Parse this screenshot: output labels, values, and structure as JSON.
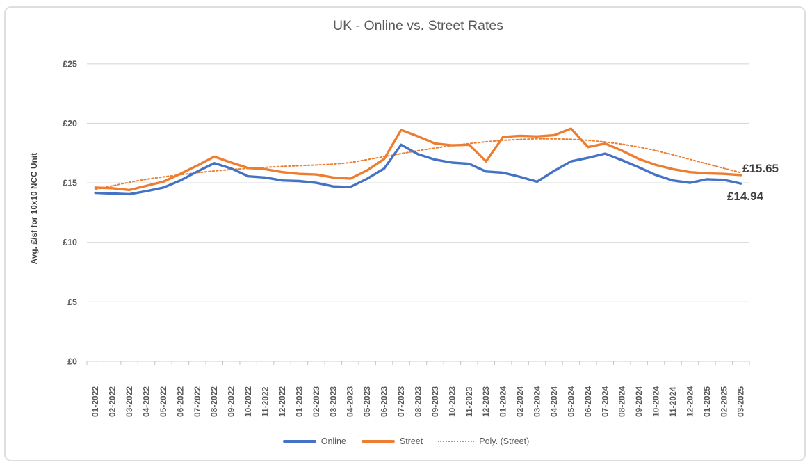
{
  "chart_data": {
    "type": "line",
    "title": "UK - Online vs. Street Rates",
    "xlabel": "",
    "ylabel": "Avg. £/sf for 10x10 NCC Unit",
    "ylim": [
      0,
      25
    ],
    "ytick_step": 5,
    "ytick_labels": [
      "£0",
      "£5",
      "£10",
      "£15",
      "£20",
      "£25"
    ],
    "grid": true,
    "legend_position": "bottom",
    "categories": [
      "01-2022",
      "02-2022",
      "03-2022",
      "04-2022",
      "05-2022",
      "06-2022",
      "07-2022",
      "08-2022",
      "09-2022",
      "10-2022",
      "11-2022",
      "12-2022",
      "01-2023",
      "02-2023",
      "03-2023",
      "04-2023",
      "05-2023",
      "06-2023",
      "07-2023",
      "08-2023",
      "09-2023",
      "10-2023",
      "11-2023",
      "12-2023",
      "01-2024",
      "02-2024",
      "03-2024",
      "04-2024",
      "05-2024",
      "06-2024",
      "07-2024",
      "08-2024",
      "09-2024",
      "10-2024",
      "11-2024",
      "12-2024",
      "01-2025",
      "02-2025",
      "03-2025"
    ],
    "series": [
      {
        "name": "Online",
        "type": "line",
        "style": "solid",
        "color": "#4472C4",
        "values": [
          14.15,
          14.1,
          14.05,
          14.3,
          14.6,
          15.2,
          15.95,
          16.65,
          16.2,
          15.55,
          15.45,
          15.2,
          15.15,
          15.0,
          14.7,
          14.65,
          15.35,
          16.2,
          18.2,
          17.4,
          16.95,
          16.7,
          16.6,
          15.95,
          15.85,
          15.5,
          15.1,
          16.0,
          16.8,
          17.1,
          17.45,
          16.9,
          16.3,
          15.65,
          15.2,
          15.0,
          15.3,
          15.25,
          14.94
        ]
      },
      {
        "name": "Street",
        "type": "line",
        "style": "solid",
        "color": "#ED7D31",
        "values": [
          14.6,
          14.55,
          14.4,
          14.75,
          15.1,
          15.75,
          16.45,
          17.2,
          16.7,
          16.25,
          16.15,
          15.9,
          15.75,
          15.7,
          15.45,
          15.35,
          16.05,
          17.0,
          19.45,
          18.9,
          18.3,
          18.15,
          18.2,
          16.8,
          18.85,
          18.95,
          18.9,
          19.0,
          19.55,
          18.0,
          18.3,
          17.7,
          17.0,
          16.5,
          16.15,
          15.9,
          15.8,
          15.75,
          15.65
        ]
      },
      {
        "name": "Poly. (Street)",
        "type": "trendline",
        "style": "dotted",
        "color": "#ED7D31",
        "values": [
          14.45,
          14.75,
          15.05,
          15.3,
          15.5,
          15.68,
          15.85,
          16.0,
          16.12,
          16.22,
          16.3,
          16.38,
          16.44,
          16.5,
          16.57,
          16.7,
          16.95,
          17.2,
          17.45,
          17.7,
          17.92,
          18.12,
          18.3,
          18.45,
          18.57,
          18.65,
          18.7,
          18.7,
          18.66,
          18.57,
          18.43,
          18.25,
          18.0,
          17.7,
          17.35,
          16.97,
          16.6,
          16.22,
          15.85
        ]
      }
    ],
    "annotations": [
      {
        "series": "Street",
        "category": "03-2025",
        "text": "£15.65"
      },
      {
        "series": "Online",
        "category": "03-2025",
        "text": "£14.94"
      }
    ]
  }
}
